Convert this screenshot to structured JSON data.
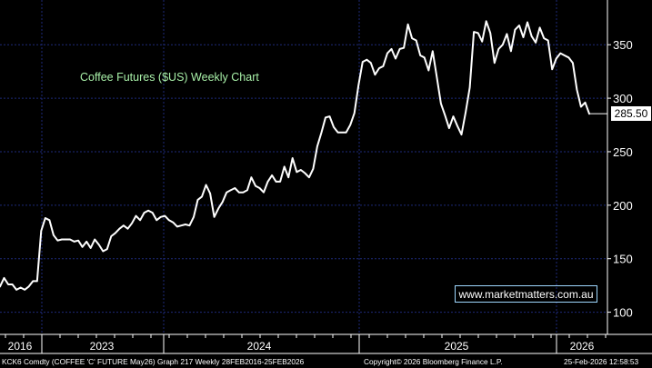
{
  "chart_data": {
    "type": "line",
    "title": "Coffee Futures ($US) Weekly Chart",
    "x_labels": [
      "2016",
      "2023",
      "2024",
      "2025",
      "2026"
    ],
    "y_ticks": [
      100,
      150,
      200,
      250,
      300,
      350
    ],
    "ylim": [
      92,
      385
    ],
    "grid": true,
    "last_value_label": "285.50",
    "series": [
      {
        "values": [
          124,
          132,
          126,
          126,
          121,
          123,
          121,
          124,
          129,
          129,
          176,
          188,
          186,
          172,
          167,
          168,
          168,
          168,
          166,
          167,
          161,
          166,
          160,
          168,
          163,
          157,
          159,
          171,
          174,
          178,
          181,
          178,
          183,
          190,
          186,
          193,
          195,
          193,
          186,
          189,
          190,
          186,
          184,
          180,
          181,
          182,
          181,
          189,
          205,
          208,
          219,
          211,
          189,
          197,
          203,
          212,
          214,
          216,
          212,
          212,
          214,
          226,
          218,
          216,
          212,
          222,
          228,
          222,
          222,
          236,
          226,
          244,
          231,
          233,
          230,
          226,
          234,
          255,
          268,
          282,
          283,
          273,
          268,
          268,
          268,
          275,
          286,
          312,
          334,
          336,
          333,
          322,
          328,
          330,
          342,
          346,
          337,
          346,
          347,
          369,
          356,
          354,
          340,
          338,
          326,
          344,
          320,
          295,
          284,
          272,
          283,
          274,
          266,
          287,
          310,
          362,
          361,
          353,
          372,
          361,
          333,
          346,
          350,
          360,
          344,
          364,
          368,
          357,
          371,
          358,
          352,
          366,
          356,
          354,
          327,
          337,
          342,
          340,
          338,
          333,
          308,
          292,
          296,
          285.5
        ]
      }
    ]
  },
  "footer": {
    "left": "KCK6 Comdty (COFFEE 'C' FUTURE May26) Graph 217 Weekly 28FEB2016-25FEB2026",
    "center": "Copyright© 2026 Bloomberg Finance L.P.",
    "right": "25-Feb-2026 12:58:53"
  },
  "watermark": "www.marketmatters.com.au",
  "colors": {
    "background": "#000000",
    "line": "#ffffff",
    "grid": "#1e2a7a",
    "title": "#a8f0a8"
  }
}
